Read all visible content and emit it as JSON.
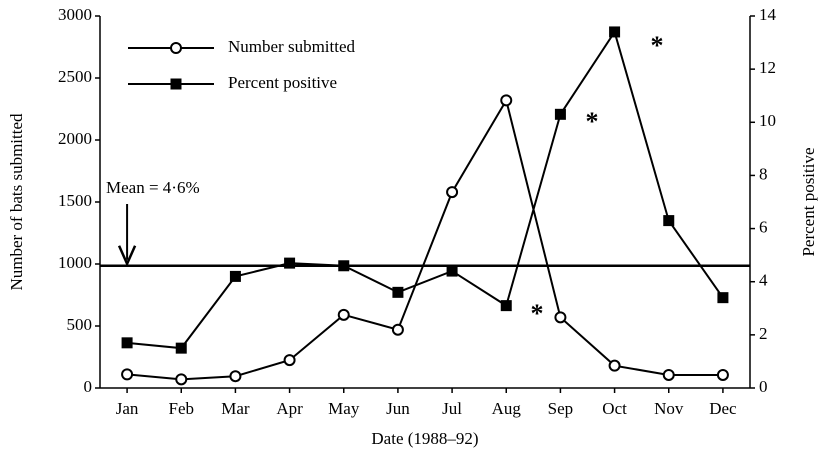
{
  "chart_data": {
    "type": "line",
    "x_label": "Date (1988–92)",
    "y_label": "Number of bats submitted",
    "y2_label": "Percent positive",
    "categories": [
      "Jan",
      "Feb",
      "Mar",
      "Apr",
      "May",
      "Jun",
      "Jul",
      "Aug",
      "Sep",
      "Oct",
      "Nov",
      "Dec"
    ],
    "series": [
      {
        "name": "Number submitted",
        "color": "#000000",
        "marker": "open-circle",
        "values": [
          110,
          70,
          95,
          225,
          590,
          470,
          1580,
          2320,
          570,
          180,
          105,
          105
        ]
      },
      {
        "name": "Percent positive",
        "color": "#000000",
        "marker": "square",
        "axis": "y2",
        "values": [
          1.7,
          1.5,
          4.2,
          4.7,
          4.6,
          3.6,
          4.4,
          3.1,
          10.3,
          13.4,
          6.3,
          3.4
        ]
      }
    ],
    "ylim": [
      0,
      3000
    ],
    "yticks": [
      0,
      500,
      1000,
      1500,
      2000,
      2500,
      3000
    ],
    "y2lim": [
      0,
      14
    ],
    "y2ticks": [
      0,
      2,
      4,
      6,
      8,
      10,
      12,
      14
    ],
    "reference_line": {
      "label": "Mean = 4·6%",
      "value": 4.6,
      "axis": "y2"
    },
    "annotations": [
      "*",
      "*",
      "*"
    ],
    "legend": "top-left",
    "grid": false
  }
}
